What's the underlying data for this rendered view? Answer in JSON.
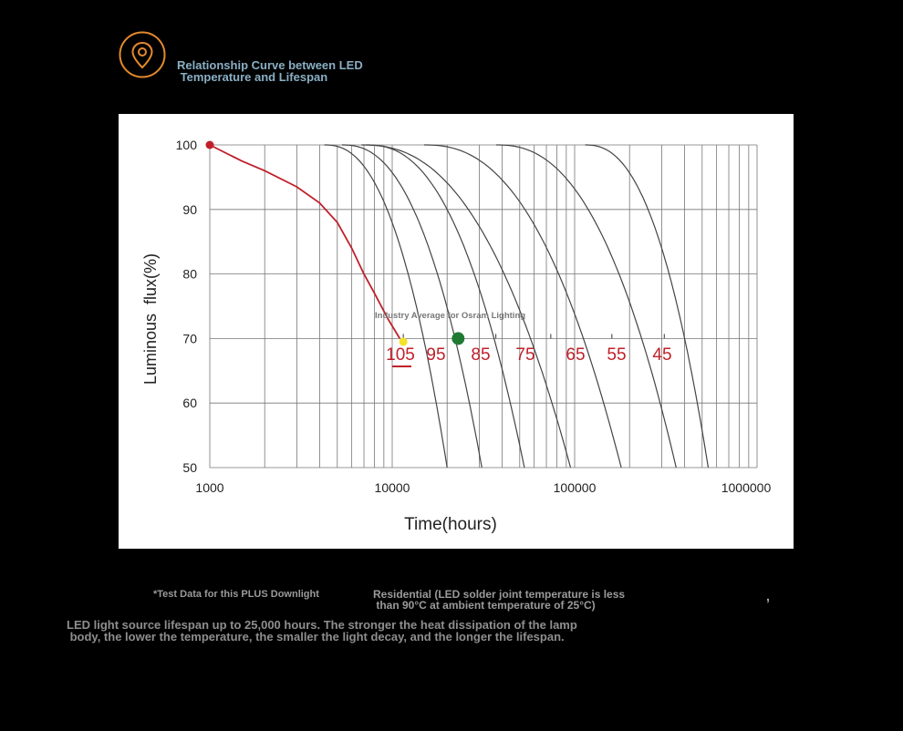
{
  "header": {
    "title": "Relationship Curve between LED\n Temperature and Lifespan",
    "accent_color": "#e58a2c",
    "icon": "location-pin-icon"
  },
  "footer": {
    "test_note": "*Test Data for this PLUS Downlight",
    "residential_note": "Residential (LED solder joint temperature is less\n than 90°C at ambient temperature of 25°C)",
    "comma": ",",
    "description": "LED light source lifespan up to 25,000 hours. The stronger the heat dissipation of the lamp\n body, the lower the temperature, the smaller the light decay, and the longer the lifespan."
  },
  "chart_data": {
    "type": "line",
    "xlabel": "Time(hours)",
    "ylabel": "Luminous  flux(%)",
    "x_scale": "log",
    "xlim": [
      1000,
      1000000
    ],
    "ylim": [
      50,
      100
    ],
    "x_ticks": [
      "1000",
      "10000",
      "100000",
      "1000000"
    ],
    "y_ticks": [
      "100",
      "90",
      "80",
      "70",
      "60",
      "50"
    ],
    "grid": true,
    "temperature_labels": [
      "105",
      "95",
      "85",
      "75",
      "65",
      "55",
      "45"
    ],
    "temperature_curves": [
      {
        "name": "105",
        "x70": 11500,
        "x50": 20000
      },
      {
        "name": "95",
        "x70": 16500,
        "x50": 31000
      },
      {
        "name": "85",
        "x70": 26000,
        "x50": 53000
      },
      {
        "name": "75",
        "x70": 37000,
        "x50": 95000
      },
      {
        "name": "65",
        "x70": 74000,
        "x50": 180000
      },
      {
        "name": "55",
        "x70": 160000,
        "x50": 360000
      },
      {
        "name": "45",
        "x70": 310000,
        "x50": 540000
      }
    ],
    "measured_series": {
      "color": "#c0202a",
      "points": [
        [
          1000,
          100
        ],
        [
          1500,
          97.5
        ],
        [
          2000,
          96
        ],
        [
          3000,
          93.5
        ],
        [
          4000,
          91
        ],
        [
          5000,
          88
        ],
        [
          6000,
          84
        ],
        [
          7000,
          80
        ],
        [
          8000,
          77
        ],
        [
          9500,
          73
        ],
        [
          11000,
          70
        ]
      ]
    },
    "annotation": "Industry Average for Osram Lighting",
    "markers": [
      {
        "x": 1000,
        "y": 100,
        "color": "#c0202a"
      },
      {
        "x": 11500,
        "y": 69.5,
        "color": "#f2e32a"
      },
      {
        "x": 23000,
        "y": 70,
        "color": "#1e7a32"
      }
    ],
    "label_color": "#c0202a"
  }
}
